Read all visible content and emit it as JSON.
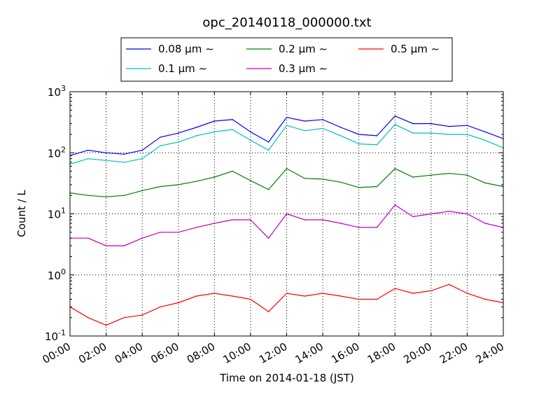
{
  "chart_data": {
    "type": "line",
    "title": "opc_20140118_000000.txt",
    "xlabel": "Time on 2014-01-18 (JST)",
    "ylabel": "Count / L",
    "yscale": "log",
    "ylim": [
      0.1,
      1000
    ],
    "xlim": [
      "00:00",
      "24:00"
    ],
    "grid": true,
    "legend_position": "top",
    "x_ticks": [
      "00:00",
      "02:00",
      "04:00",
      "06:00",
      "08:00",
      "10:00",
      "12:00",
      "14:00",
      "16:00",
      "18:00",
      "20:00",
      "22:00",
      "24:00"
    ],
    "y_ticks": [
      {
        "base": "10",
        "exp": "-1"
      },
      {
        "base": "10",
        "exp": "0"
      },
      {
        "base": "10",
        "exp": "1"
      },
      {
        "base": "10",
        "exp": "2"
      },
      {
        "base": "10",
        "exp": "3"
      }
    ],
    "x": [
      "00:00",
      "01:00",
      "02:00",
      "03:00",
      "04:00",
      "05:00",
      "06:00",
      "07:00",
      "08:00",
      "09:00",
      "10:00",
      "11:00",
      "12:00",
      "13:00",
      "14:00",
      "15:00",
      "16:00",
      "17:00",
      "18:00",
      "19:00",
      "20:00",
      "21:00",
      "22:00",
      "23:00",
      "24:00"
    ],
    "series": [
      {
        "name": "0.08 μm ∼",
        "color": "#0000ff",
        "values": [
          90,
          110,
          100,
          95,
          110,
          180,
          210,
          260,
          330,
          350,
          220,
          150,
          380,
          330,
          350,
          260,
          200,
          190,
          400,
          300,
          300,
          270,
          280,
          220,
          170
        ]
      },
      {
        "name": "0.1 μm ∼",
        "color": "#00bfbf",
        "values": [
          65,
          80,
          75,
          70,
          80,
          130,
          150,
          190,
          220,
          240,
          160,
          110,
          280,
          230,
          250,
          190,
          140,
          135,
          290,
          210,
          210,
          200,
          200,
          160,
          120
        ]
      },
      {
        "name": "0.2 μm ∼",
        "color": "#008000",
        "values": [
          22,
          20,
          19,
          20,
          24,
          28,
          30,
          34,
          40,
          50,
          35,
          25,
          55,
          38,
          37,
          33,
          27,
          28,
          55,
          40,
          43,
          46,
          43,
          32,
          28
        ]
      },
      {
        "name": "0.3 μm ∼",
        "color": "#bf00bf",
        "values": [
          4,
          4,
          3,
          3,
          4,
          5,
          5,
          6,
          7,
          8,
          8,
          4,
          10,
          8,
          8,
          7,
          6,
          6,
          14,
          9,
          10,
          11,
          10,
          7,
          6
        ]
      },
      {
        "name": "0.5 μm ∼",
        "color": "#ff0000",
        "values": [
          0.3,
          0.2,
          0.15,
          0.2,
          0.22,
          0.3,
          0.35,
          0.45,
          0.5,
          0.45,
          0.4,
          0.25,
          0.5,
          0.45,
          0.5,
          0.45,
          0.4,
          0.4,
          0.6,
          0.5,
          0.55,
          0.7,
          0.5,
          0.4,
          0.35
        ]
      }
    ]
  }
}
